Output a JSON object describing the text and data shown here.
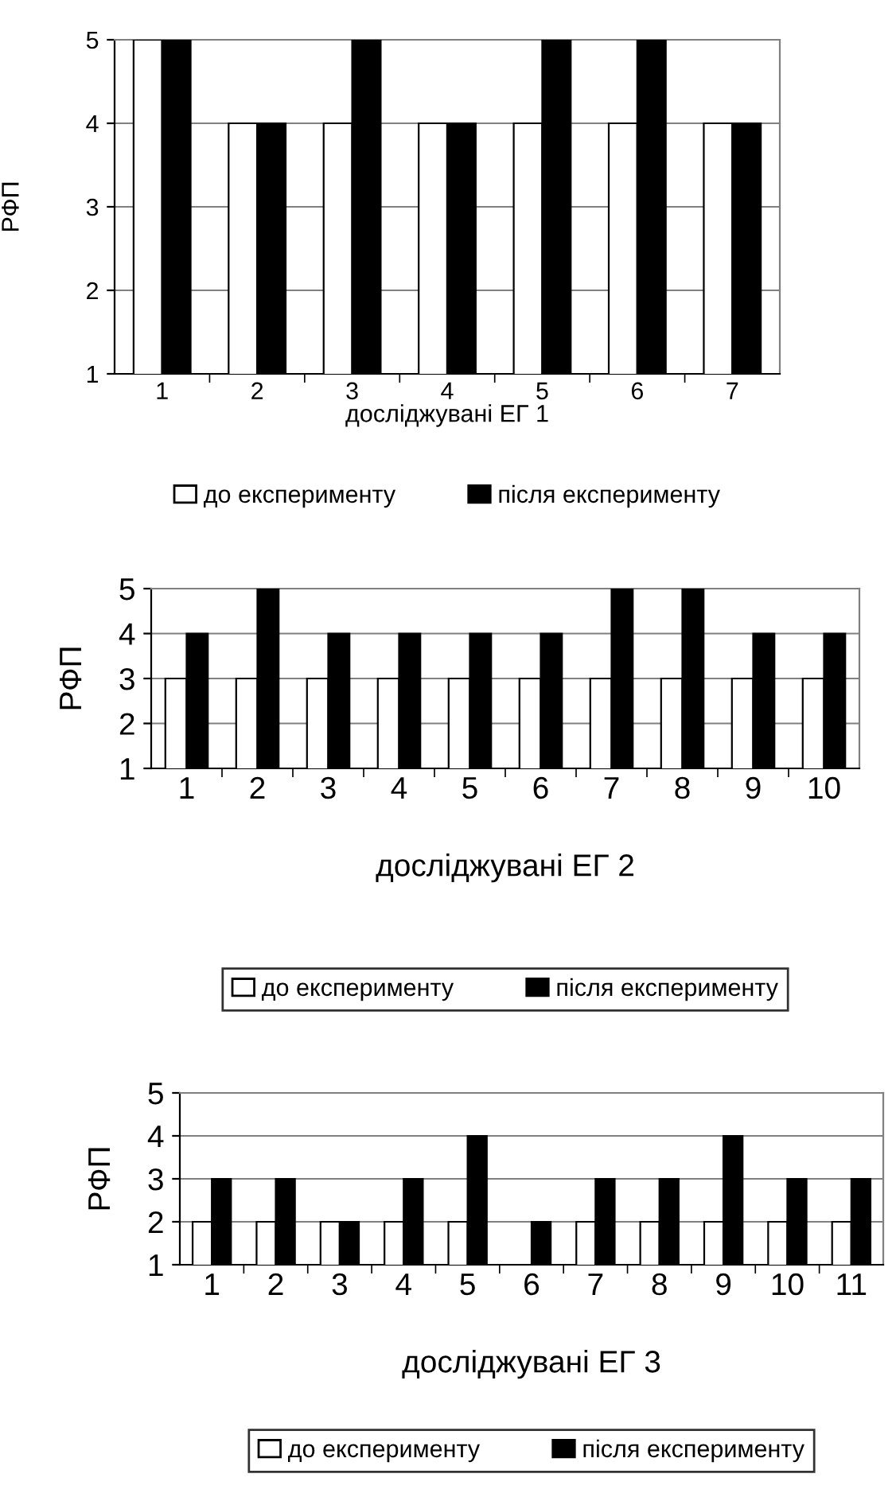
{
  "chart_data": [
    {
      "type": "bar",
      "xlabel": "досліджувані ЕГ 1",
      "ylabel": "РФП",
      "categories": [
        "1",
        "2",
        "3",
        "4",
        "5",
        "6",
        "7"
      ],
      "ylim": [
        1,
        5
      ],
      "yticks": [
        1,
        2,
        3,
        4,
        5
      ],
      "grid": "y",
      "legend": "bottom",
      "series": [
        {
          "name": "до експерименту",
          "color": "#ffffff",
          "values": [
            5,
            4,
            4,
            4,
            4,
            4,
            4
          ]
        },
        {
          "name": "після експерименту",
          "color": "#000000",
          "values": [
            5,
            4,
            5,
            4,
            5,
            5,
            4
          ]
        }
      ]
    },
    {
      "type": "bar",
      "xlabel": "досліджувані ЕГ 2",
      "ylabel": "РФП",
      "categories": [
        "1",
        "2",
        "3",
        "4",
        "5",
        "6",
        "7",
        "8",
        "9",
        "10"
      ],
      "ylim": [
        1,
        5
      ],
      "yticks": [
        1,
        2,
        3,
        4,
        5
      ],
      "grid": "y",
      "legend": "bottom",
      "series": [
        {
          "name": "до експерименту",
          "color": "#ffffff",
          "values": [
            3,
            3,
            3,
            3,
            3,
            3,
            3,
            3,
            3,
            3
          ]
        },
        {
          "name": "після експерименту",
          "color": "#000000",
          "values": [
            4,
            5,
            4,
            4,
            4,
            4,
            5,
            5,
            4,
            4
          ]
        }
      ]
    },
    {
      "type": "bar",
      "xlabel": "досліджувані ЕГ 3",
      "ylabel": "РФП",
      "categories": [
        "1",
        "2",
        "3",
        "4",
        "5",
        "6",
        "7",
        "8",
        "9",
        "10",
        "11"
      ],
      "ylim": [
        1,
        5
      ],
      "yticks": [
        1,
        2,
        3,
        4,
        5
      ],
      "grid": "y",
      "legend": "bottom",
      "series": [
        {
          "name": "до експерименту",
          "color": "#ffffff",
          "values": [
            2,
            2,
            2,
            2,
            2,
            null,
            2,
            2,
            2,
            2,
            2
          ]
        },
        {
          "name": "після експерименту",
          "color": "#000000",
          "values": [
            3,
            3,
            2,
            3,
            4,
            2,
            3,
            3,
            4,
            3,
            3
          ]
        }
      ]
    }
  ]
}
